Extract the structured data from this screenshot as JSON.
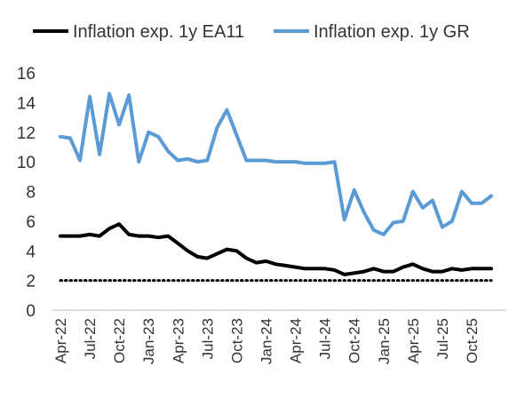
{
  "chart_data": {
    "type": "line",
    "title": "",
    "xlabel": "",
    "ylabel": "",
    "ylim": [
      0,
      16
    ],
    "yticks": [
      0,
      2,
      4,
      6,
      8,
      10,
      12,
      14,
      16
    ],
    "grid": false,
    "legend_position": "top",
    "x": [
      "Apr-22",
      "May-22",
      "Jun-22",
      "Jul-22",
      "Aug-22",
      "Sep-22",
      "Oct-22",
      "Nov-22",
      "Dec-22",
      "Jan-23",
      "Feb-23",
      "Mar-23",
      "Apr-23",
      "May-23",
      "Jun-23",
      "Jul-23",
      "Aug-23",
      "Sep-23",
      "Oct-23",
      "Nov-23",
      "Dec-23",
      "Jan-24",
      "Feb-24",
      "Mar-24",
      "Apr-24",
      "May-24",
      "Jun-24",
      "Jul-24",
      "Aug-24",
      "Sep-24",
      "Oct-24",
      "Nov-24",
      "Dec-24",
      "Jan-25",
      "Feb-25",
      "Mar-25",
      "Apr-25",
      "May-25",
      "Jun-25",
      "Jul-25",
      "Aug-25",
      "Sep-25",
      "Oct-25",
      "Nov-25",
      "Dec-25"
    ],
    "x_tick_labels": [
      "Apr-22",
      "Jul-22",
      "Oct-22",
      "Jan-23",
      "Apr-23",
      "Jul-23",
      "Oct-23",
      "Jan-24",
      "Apr-24",
      "Jul-24",
      "Oct-24",
      "Jan-25",
      "Apr-25",
      "Jul-25",
      "Oct-25"
    ],
    "series": [
      {
        "name": "Inflation exp. 1y EA11",
        "color": "#000000",
        "values": [
          5.0,
          5.0,
          5.0,
          5.1,
          5.0,
          5.5,
          5.8,
          5.1,
          5.0,
          5.0,
          4.9,
          5.0,
          4.5,
          4.0,
          3.6,
          3.5,
          3.8,
          4.1,
          4.0,
          3.5,
          3.2,
          3.3,
          3.1,
          3.0,
          2.9,
          2.8,
          2.8,
          2.8,
          2.7,
          2.4,
          2.5,
          2.6,
          2.8,
          2.6,
          2.6,
          2.9,
          3.1,
          2.8,
          2.6,
          2.6,
          2.8,
          2.7,
          2.8,
          2.8,
          2.8
        ]
      },
      {
        "name": "Inflation exp. 1y GR",
        "color": "#5b9bd5",
        "values": [
          11.7,
          11.6,
          10.1,
          14.4,
          10.5,
          14.6,
          12.5,
          14.5,
          10.0,
          12.0,
          11.7,
          10.7,
          10.1,
          10.2,
          10.0,
          10.1,
          12.3,
          13.5,
          11.8,
          10.1,
          10.1,
          10.1,
          10.0,
          10.0,
          10.0,
          9.9,
          9.9,
          9.9,
          10.0,
          6.1,
          8.1,
          6.6,
          5.4,
          5.1,
          5.9,
          6.0,
          8.0,
          6.9,
          7.4,
          5.6,
          6.0,
          8.0,
          7.2,
          7.2,
          7.7
        ]
      }
    ],
    "reference_line": {
      "value": 2,
      "style": "dotted",
      "color": "#000000"
    }
  }
}
